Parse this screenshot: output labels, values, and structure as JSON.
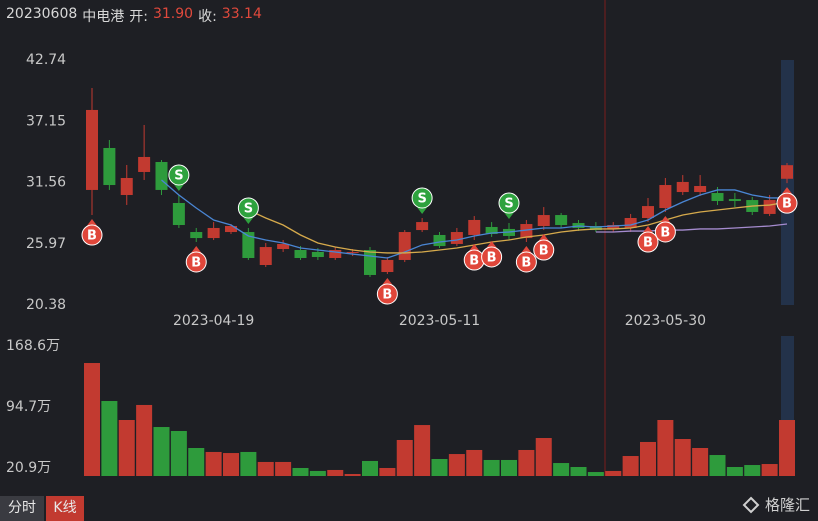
{
  "info": {
    "date": "20230608",
    "name": "中电港",
    "open_label": "开:",
    "open": "31.90",
    "close_label": "收:",
    "close": "33.14"
  },
  "tabs": [
    "分时",
    "K线"
  ],
  "watermark": "格隆汇",
  "chart_data": {
    "type": "candlestick",
    "categories": [
      null,
      null,
      null,
      null,
      null,
      null,
      null,
      "2023-04-19",
      null,
      null,
      null,
      null,
      null,
      null,
      null,
      null,
      null,
      null,
      null,
      null,
      "2023-05-11",
      null,
      null,
      null,
      null,
      null,
      null,
      null,
      null,
      null,
      null,
      null,
      null,
      "2023-05-30",
      null,
      null,
      null,
      null,
      null,
      null,
      null
    ],
    "open": [
      30.88,
      34.71,
      30.42,
      32.52,
      33.43,
      29.69,
      27.04,
      26.49,
      27.04,
      27.04,
      24.03,
      25.49,
      25.4,
      25.22,
      24.67,
      25.13,
      25.4,
      23.39,
      24.49,
      27.22,
      26.77,
      25.95,
      26.77,
      27.5,
      27.32,
      26.49,
      27.59,
      28.59,
      27.86,
      27.59,
      27.32,
      27.41,
      28.32,
      29.23,
      30.69,
      30.69,
      30.6,
      30.05,
      29.96,
      28.69,
      31.9
    ],
    "high": [
      40.19,
      35.44,
      33.16,
      36.81,
      33.61,
      30.42,
      27.41,
      27.95,
      27.77,
      27.41,
      26.04,
      26.31,
      25.76,
      25.58,
      25.67,
      25.49,
      25.67,
      24.76,
      27.22,
      28.32,
      27.04,
      27.41,
      28.5,
      27.95,
      27.86,
      28.14,
      29.32,
      28.78,
      28.14,
      27.95,
      27.95,
      28.69,
      30.15,
      31.97,
      32.24,
      32.24,
      31.15,
      30.6,
      30.24,
      30.42,
      33.34
    ],
    "low": [
      28.59,
      30.88,
      29.51,
      31.79,
      30.42,
      27.41,
      26.13,
      26.31,
      26.86,
      24.49,
      23.85,
      25.22,
      24.49,
      24.49,
      24.49,
      24.85,
      22.94,
      23.21,
      24.3,
      27.04,
      25.58,
      25.76,
      26.31,
      26.59,
      26.31,
      26.13,
      27.22,
      27.41,
      27.13,
      27.04,
      27.04,
      27.04,
      27.95,
      28.87,
      30.42,
      30.33,
      29.51,
      29.32,
      28.59,
      28.5,
      31.5
    ],
    "close": [
      38.18,
      31.33,
      31.97,
      33.89,
      30.88,
      27.68,
      26.49,
      27.41,
      27.59,
      24.67,
      25.67,
      25.95,
      24.67,
      24.76,
      25.4,
      25.22,
      23.12,
      24.49,
      27.04,
      27.95,
      25.76,
      27.04,
      28.14,
      26.86,
      26.68,
      27.77,
      28.59,
      27.68,
      27.41,
      27.22,
      27.68,
      28.32,
      29.41,
      31.33,
      31.61,
      31.24,
      29.87,
      29.87,
      28.87,
      29.96,
      33.14
    ],
    "up_color": "#c23a30",
    "down_color": "#2e9b3c",
    "ylim": [
      20.38,
      42.74
    ],
    "yticks": [
      42.74,
      37.15,
      31.56,
      25.97,
      20.38
    ],
    "lines": [
      {
        "color": "#4a86d4",
        "values": [
          null,
          null,
          null,
          null,
          31.79,
          30.42,
          29.23,
          28.14,
          27.68,
          26.68,
          26.31,
          26.04,
          25.58,
          25.4,
          25.22,
          25.03,
          24.85,
          24.67,
          25.22,
          25.86,
          26.13,
          26.31,
          26.68,
          26.95,
          27.04,
          27.22,
          27.41,
          27.41,
          27.59,
          27.5,
          27.59,
          27.68,
          28.14,
          29.05,
          29.78,
          30.42,
          30.88,
          30.88,
          30.42,
          30.15,
          30.15
        ]
      },
      {
        "color": "#d6aa4c",
        "values": [
          null,
          null,
          null,
          null,
          null,
          null,
          null,
          null,
          null,
          29.05,
          28.32,
          27.68,
          26.77,
          26.04,
          25.67,
          25.4,
          25.22,
          25.13,
          25.13,
          25.22,
          25.4,
          25.58,
          25.86,
          26.13,
          26.31,
          26.59,
          26.77,
          27.04,
          27.22,
          27.32,
          27.32,
          27.41,
          27.68,
          28.14,
          28.59,
          28.87,
          29.05,
          29.23,
          29.41,
          29.5,
          29.78
        ]
      },
      {
        "color": "#a58bcf",
        "values": [
          null,
          null,
          null,
          null,
          null,
          null,
          null,
          null,
          null,
          null,
          null,
          null,
          null,
          null,
          null,
          null,
          null,
          null,
          null,
          null,
          null,
          null,
          null,
          null,
          null,
          null,
          null,
          null,
          null,
          27.04,
          27.04,
          27.13,
          27.13,
          27.22,
          27.22,
          27.32,
          27.32,
          27.41,
          27.5,
          27.59,
          27.77
        ]
      }
    ],
    "signals": [
      "B",
      null,
      null,
      null,
      null,
      "S",
      "B",
      null,
      null,
      "S",
      null,
      null,
      null,
      null,
      null,
      null,
      null,
      "B",
      null,
      "S",
      null,
      null,
      "B",
      "B",
      "S",
      "B",
      "B",
      null,
      null,
      null,
      null,
      null,
      "B",
      "B",
      null,
      null,
      null,
      null,
      null,
      null,
      "B"
    ],
    "volume": {
      "values": [
        148.0,
        102.0,
        79.0,
        97.2,
        70.5,
        65.7,
        45.1,
        40.3,
        39.0,
        40.3,
        28.2,
        28.2,
        20.9,
        17.3,
        18.5,
        13.6,
        29.4,
        20.9,
        54.8,
        72.9,
        31.8,
        37.8,
        42.7,
        30.6,
        30.6,
        42.7,
        57.2,
        26.9,
        22.1,
        16.0,
        17.3,
        35.4,
        52.4,
        79.0,
        56.0,
        45.1,
        36.6,
        22.1,
        24.5,
        25.7,
        79.0
      ],
      "ylim": [
        11.2,
        168.6
      ],
      "yticks": [
        {
          "value": 168.6,
          "label": "168.6万"
        },
        {
          "value": 94.7,
          "label": "94.7万"
        },
        {
          "value": 20.9,
          "label": "20.9万"
        }
      ]
    }
  }
}
